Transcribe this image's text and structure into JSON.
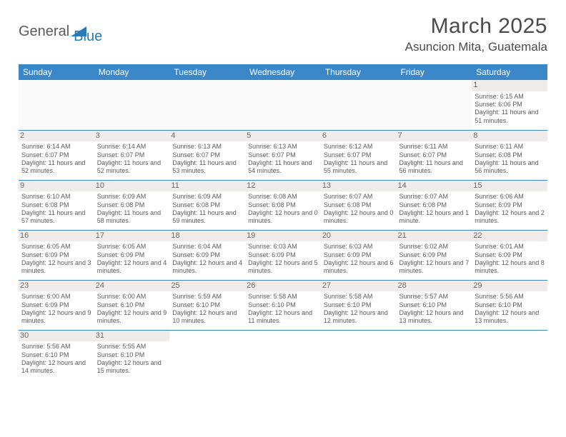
{
  "logo": {
    "text1": "General",
    "text2": "Blue"
  },
  "title": "March 2025",
  "location": "Asuncion Mita, Guatemala",
  "style": {
    "header_bg": "#3b87c8",
    "header_fg": "#ffffff",
    "border_color": "#3b87c8",
    "daynum_bg": "#f1ecec",
    "body_fontsize": 9,
    "header_fontsize": 12,
    "title_fontsize": 30,
    "location_fontsize": 17
  },
  "weekdays": [
    "Sunday",
    "Monday",
    "Tuesday",
    "Wednesday",
    "Thursday",
    "Friday",
    "Saturday"
  ],
  "weeks": [
    [
      null,
      null,
      null,
      null,
      null,
      null,
      {
        "n": "1",
        "sr": "6:15 AM",
        "ss": "6:06 PM",
        "dl": "11 hours and 51 minutes."
      }
    ],
    [
      {
        "n": "2",
        "sr": "6:14 AM",
        "ss": "6:07 PM",
        "dl": "11 hours and 52 minutes."
      },
      {
        "n": "3",
        "sr": "6:14 AM",
        "ss": "6:07 PM",
        "dl": "11 hours and 52 minutes."
      },
      {
        "n": "4",
        "sr": "6:13 AM",
        "ss": "6:07 PM",
        "dl": "11 hours and 53 minutes."
      },
      {
        "n": "5",
        "sr": "6:13 AM",
        "ss": "6:07 PM",
        "dl": "11 hours and 54 minutes."
      },
      {
        "n": "6",
        "sr": "6:12 AM",
        "ss": "6:07 PM",
        "dl": "11 hours and 55 minutes."
      },
      {
        "n": "7",
        "sr": "6:11 AM",
        "ss": "6:07 PM",
        "dl": "11 hours and 56 minutes."
      },
      {
        "n": "8",
        "sr": "6:11 AM",
        "ss": "6:08 PM",
        "dl": "11 hours and 56 minutes."
      }
    ],
    [
      {
        "n": "9",
        "sr": "6:10 AM",
        "ss": "6:08 PM",
        "dl": "11 hours and 57 minutes."
      },
      {
        "n": "10",
        "sr": "6:09 AM",
        "ss": "6:08 PM",
        "dl": "11 hours and 58 minutes."
      },
      {
        "n": "11",
        "sr": "6:09 AM",
        "ss": "6:08 PM",
        "dl": "11 hours and 59 minutes."
      },
      {
        "n": "12",
        "sr": "6:08 AM",
        "ss": "6:08 PM",
        "dl": "12 hours and 0 minutes."
      },
      {
        "n": "13",
        "sr": "6:07 AM",
        "ss": "6:08 PM",
        "dl": "12 hours and 0 minutes."
      },
      {
        "n": "14",
        "sr": "6:07 AM",
        "ss": "6:08 PM",
        "dl": "12 hours and 1 minute."
      },
      {
        "n": "15",
        "sr": "6:06 AM",
        "ss": "6:09 PM",
        "dl": "12 hours and 2 minutes."
      }
    ],
    [
      {
        "n": "16",
        "sr": "6:05 AM",
        "ss": "6:09 PM",
        "dl": "12 hours and 3 minutes."
      },
      {
        "n": "17",
        "sr": "6:05 AM",
        "ss": "6:09 PM",
        "dl": "12 hours and 4 minutes."
      },
      {
        "n": "18",
        "sr": "6:04 AM",
        "ss": "6:09 PM",
        "dl": "12 hours and 4 minutes."
      },
      {
        "n": "19",
        "sr": "6:03 AM",
        "ss": "6:09 PM",
        "dl": "12 hours and 5 minutes."
      },
      {
        "n": "20",
        "sr": "6:03 AM",
        "ss": "6:09 PM",
        "dl": "12 hours and 6 minutes."
      },
      {
        "n": "21",
        "sr": "6:02 AM",
        "ss": "6:09 PM",
        "dl": "12 hours and 7 minutes."
      },
      {
        "n": "22",
        "sr": "6:01 AM",
        "ss": "6:09 PM",
        "dl": "12 hours and 8 minutes."
      }
    ],
    [
      {
        "n": "23",
        "sr": "6:00 AM",
        "ss": "6:09 PM",
        "dl": "12 hours and 9 minutes."
      },
      {
        "n": "24",
        "sr": "6:00 AM",
        "ss": "6:10 PM",
        "dl": "12 hours and 9 minutes."
      },
      {
        "n": "25",
        "sr": "5:59 AM",
        "ss": "6:10 PM",
        "dl": "12 hours and 10 minutes."
      },
      {
        "n": "26",
        "sr": "5:58 AM",
        "ss": "6:10 PM",
        "dl": "12 hours and 11 minutes."
      },
      {
        "n": "27",
        "sr": "5:58 AM",
        "ss": "6:10 PM",
        "dl": "12 hours and 12 minutes."
      },
      {
        "n": "28",
        "sr": "5:57 AM",
        "ss": "6:10 PM",
        "dl": "12 hours and 13 minutes."
      },
      {
        "n": "29",
        "sr": "5:56 AM",
        "ss": "6:10 PM",
        "dl": "12 hours and 13 minutes."
      }
    ],
    [
      {
        "n": "30",
        "sr": "5:56 AM",
        "ss": "6:10 PM",
        "dl": "12 hours and 14 minutes."
      },
      {
        "n": "31",
        "sr": "5:55 AM",
        "ss": "6:10 PM",
        "dl": "12 hours and 15 minutes."
      },
      null,
      null,
      null,
      null,
      null
    ]
  ],
  "labels": {
    "sunrise": "Sunrise:",
    "sunset": "Sunset:",
    "daylight": "Daylight:"
  }
}
